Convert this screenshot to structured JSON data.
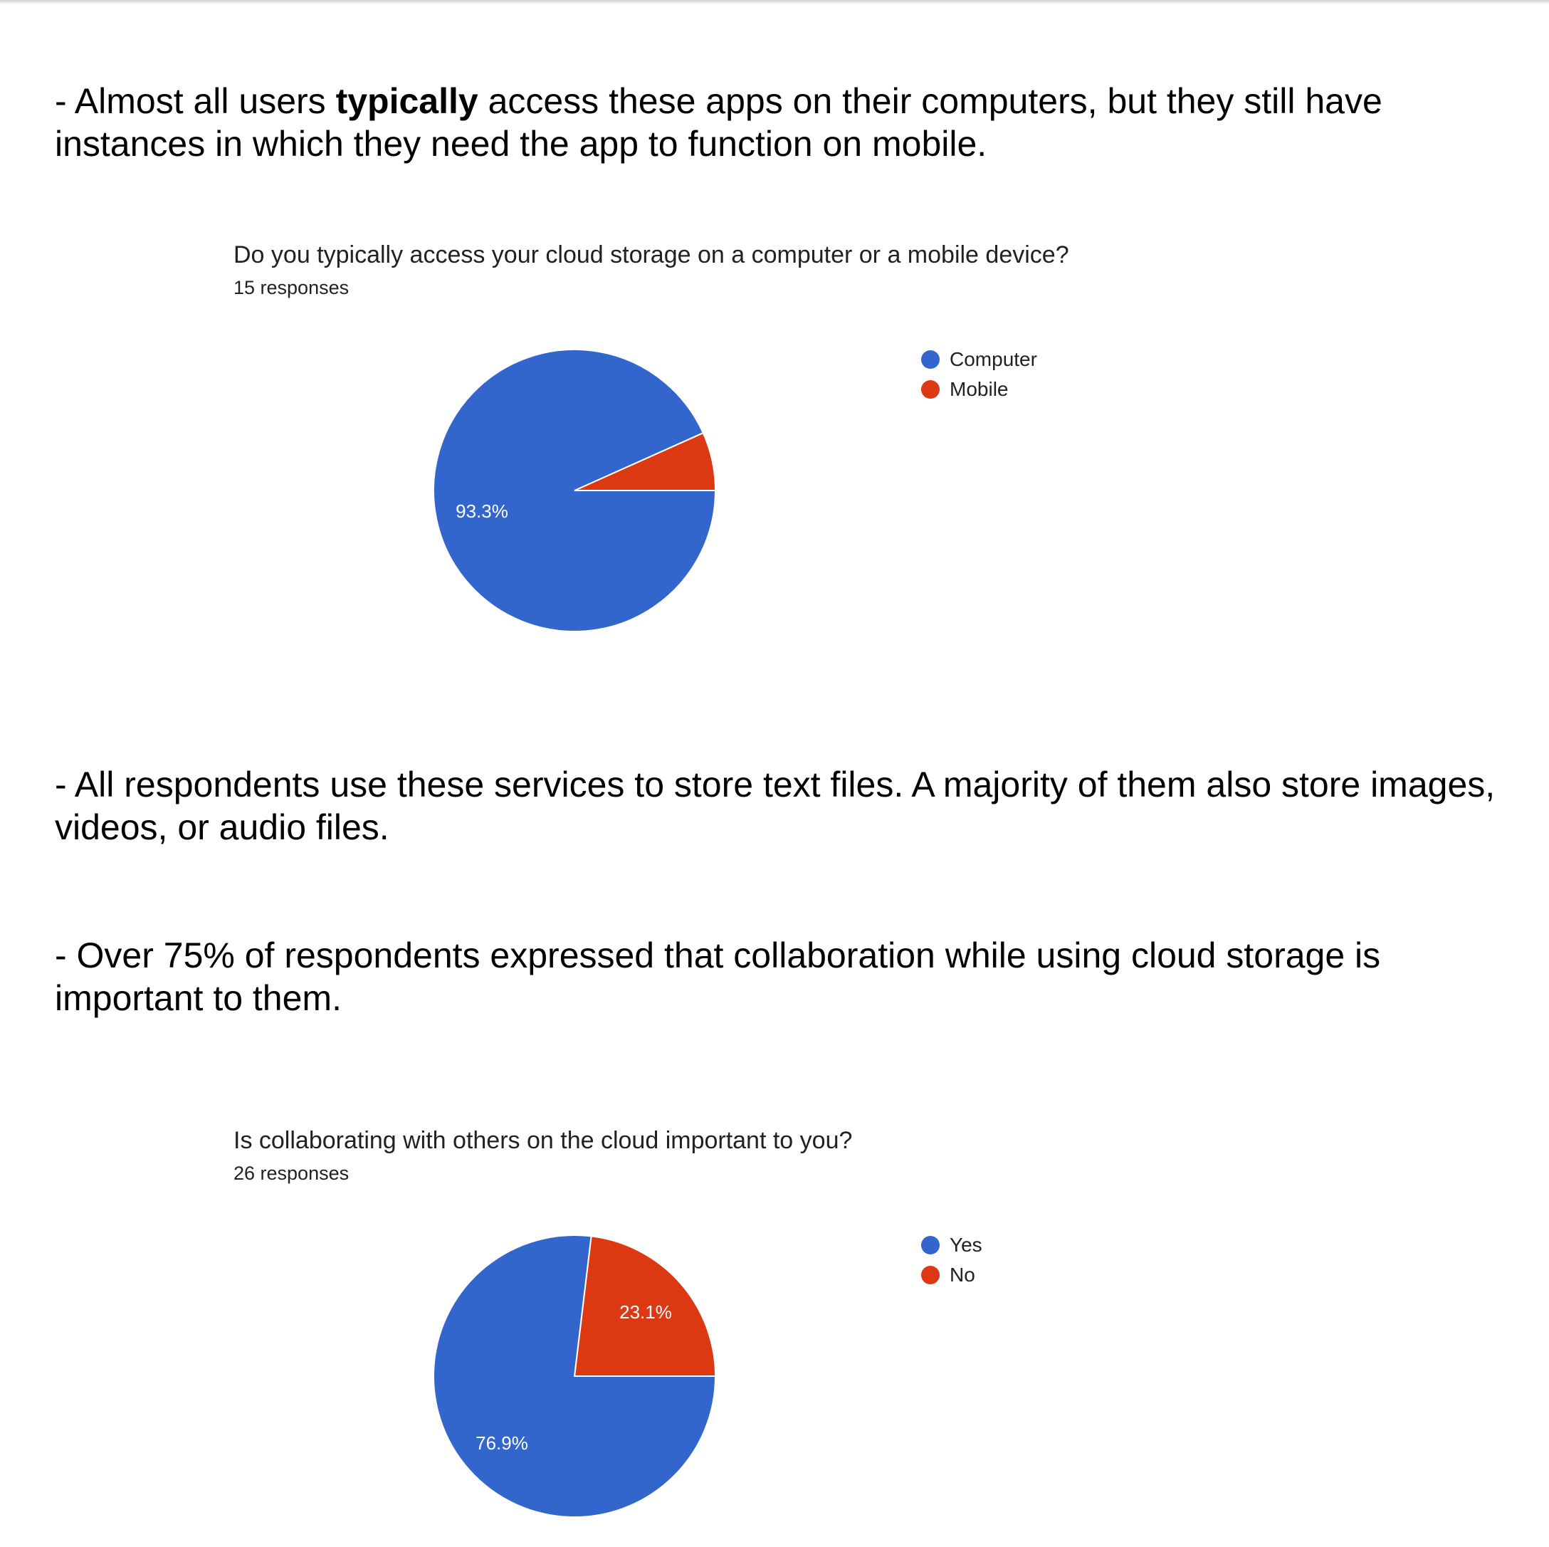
{
  "paragraphs": {
    "p1_prefix": "- Almost all users ",
    "p1_bold": "typically",
    "p1_suffix": " access these apps on their computers, but they still have instances in which they need the app to function on mobile.",
    "p2": "- All respondents use these services to store text files. A majority of them also store images, videos, or audio files.",
    "p3": "- Over 75% of respondents expressed that collaboration while using cloud storage is important to them."
  },
  "colors": {
    "blue": "#3366cc",
    "red": "#dc3912"
  },
  "chart_data": [
    {
      "type": "pie",
      "title": "Do you typically access your cloud storage on a computer or a mobile device?",
      "subtitle": "15 responses",
      "legend_position": "right",
      "start_angle_deg": 90,
      "direction": "counterclockwise",
      "slices": [
        {
          "label": "Computer",
          "value": 93.3,
          "display": "93.3%",
          "color": "#3366cc"
        },
        {
          "label": "Mobile",
          "value": 6.7,
          "display": "",
          "color": "#dc3912"
        }
      ]
    },
    {
      "type": "pie",
      "title": "Is collaborating with others on the cloud important to you?",
      "subtitle": "26 responses",
      "legend_position": "right",
      "start_angle_deg": 90,
      "direction": "counterclockwise",
      "slices": [
        {
          "label": "Yes",
          "value": 76.9,
          "display": "76.9%",
          "color": "#3366cc"
        },
        {
          "label": "No",
          "value": 23.1,
          "display": "23.1%",
          "color": "#dc3912"
        }
      ]
    }
  ]
}
